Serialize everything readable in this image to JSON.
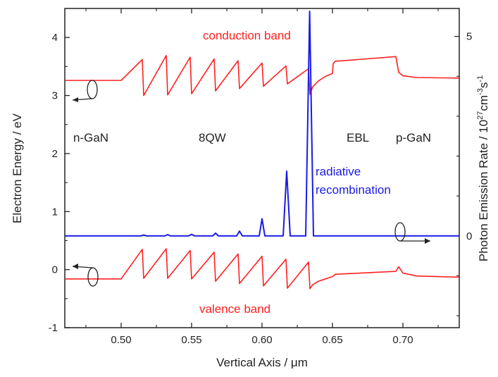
{
  "chart_data": {
    "type": "line",
    "xlabel": "Vertical Axis / μm",
    "ylabel_left": "Electron Energy / eV",
    "ylabel_right": "Photon Emission Rate / 10",
    "ylabel_right_sup1": "27",
    "ylabel_right_mid": "cm",
    "ylabel_right_sup2": "-3",
    "ylabel_right_end": "s",
    "ylabel_right_sup3": "-1",
    "xlim": [
      0.46,
      0.74
    ],
    "ylim_left": [
      -1,
      4.5
    ],
    "ylim_right": [
      -2.3,
      5.7
    ],
    "x_ticks": [
      "0.50",
      "0.55",
      "0.60",
      "0.65",
      "0.70"
    ],
    "x_tick_values": [
      0.5,
      0.55,
      0.6,
      0.65,
      0.7
    ],
    "y_left_ticks": [
      "-1",
      "0",
      "1",
      "2",
      "3",
      "4"
    ],
    "y_left_tick_values": [
      -1,
      0,
      1,
      2,
      3,
      4
    ],
    "y_right_ticks": [
      "0",
      "5"
    ],
    "y_right_tick_values": [
      0,
      5
    ],
    "series": [
      {
        "name": "conduction band",
        "color": "#ff2020",
        "axis": "left",
        "x": [
          0.46,
          0.5,
          0.515,
          0.516,
          0.532,
          0.533,
          0.549,
          0.55,
          0.566,
          0.567,
          0.583,
          0.584,
          0.6,
          0.601,
          0.617,
          0.618,
          0.633,
          0.634,
          0.636,
          0.64,
          0.645,
          0.65,
          0.6505,
          0.652,
          0.695,
          0.697,
          0.7,
          0.71,
          0.74
        ],
        "y": [
          3.26,
          3.26,
          3.62,
          3.0,
          3.69,
          3.01,
          3.66,
          3.03,
          3.63,
          3.08,
          3.6,
          3.12,
          3.56,
          3.16,
          3.51,
          3.2,
          3.46,
          3.02,
          3.15,
          3.25,
          3.33,
          3.38,
          3.55,
          3.59,
          3.67,
          3.4,
          3.34,
          3.31,
          3.3
        ]
      },
      {
        "name": "valence band",
        "color": "#ff2020",
        "axis": "left",
        "x": [
          0.46,
          0.5,
          0.515,
          0.516,
          0.532,
          0.533,
          0.549,
          0.55,
          0.566,
          0.567,
          0.583,
          0.584,
          0.6,
          0.601,
          0.617,
          0.618,
          0.633,
          0.634,
          0.636,
          0.64,
          0.645,
          0.65,
          0.652,
          0.695,
          0.697,
          0.7,
          0.71,
          0.74
        ],
        "y": [
          -0.16,
          -0.16,
          0.35,
          -0.15,
          0.36,
          -0.15,
          0.33,
          -0.16,
          0.3,
          -0.2,
          0.27,
          -0.24,
          0.23,
          -0.28,
          0.18,
          -0.32,
          0.13,
          -0.33,
          -0.26,
          -0.2,
          -0.16,
          -0.12,
          -0.08,
          -0.03,
          0.05,
          -0.06,
          -0.11,
          -0.13
        ]
      },
      {
        "name": "radiative recombination",
        "color": "#1a1ae6",
        "axis": "right",
        "x": [
          0.46,
          0.514,
          0.516,
          0.518,
          0.531,
          0.533,
          0.535,
          0.548,
          0.55,
          0.552,
          0.565,
          0.567,
          0.569,
          0.582,
          0.584,
          0.586,
          0.598,
          0.6,
          0.602,
          0.615,
          0.6175,
          0.62,
          0.631,
          0.6338,
          0.6365,
          0.74
        ],
        "y": [
          0,
          0,
          0.02,
          0,
          0,
          0.03,
          0,
          0,
          0.04,
          0,
          0,
          0.07,
          0,
          0,
          0.12,
          0,
          0,
          0.43,
          0,
          0,
          1.62,
          0,
          0,
          5.63,
          0,
          0
        ]
      }
    ],
    "annotations": {
      "conduction": "conduction band",
      "valence": "valence band",
      "ngan": "n-GaN",
      "qw": "8QW",
      "ebl": "EBL",
      "pgan": "p-GaN",
      "radiative_line1": "radiative",
      "radiative_line2": "recombination"
    }
  }
}
